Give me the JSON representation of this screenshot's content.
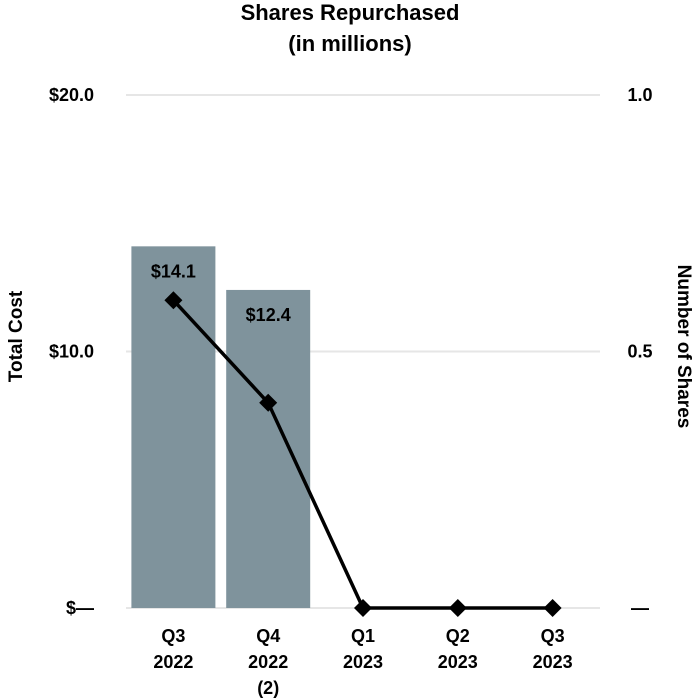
{
  "chart_data": {
    "type": "bar",
    "title": "Shares Repurchased",
    "subtitle": "(in millions)",
    "categories": [
      [
        "Q3",
        "2022"
      ],
      [
        "Q4",
        "2022",
        "(2)"
      ],
      [
        "Q1",
        "2023"
      ],
      [
        "Q2",
        "2023"
      ],
      [
        "Q3",
        "2023"
      ]
    ],
    "series": [
      {
        "name": "Total Cost",
        "kind": "bar",
        "axis": "left",
        "values": [
          14.1,
          12.4,
          0,
          0,
          0
        ],
        "data_labels": [
          "$14.1",
          "$12.4",
          "",
          "",
          ""
        ]
      },
      {
        "name": "Number of Shares",
        "kind": "line",
        "axis": "right",
        "values": [
          0.6,
          0.4,
          0,
          0,
          0
        ]
      }
    ],
    "ylabel": "Total Cost",
    "y2label": "Number of Shares",
    "ylim": [
      0,
      20
    ],
    "y2lim": [
      0,
      1
    ],
    "yticks": [
      {
        "value": 0,
        "label": "$—"
      },
      {
        "value": 10,
        "label": "$10.0"
      },
      {
        "value": 20,
        "label": "$20.0"
      }
    ],
    "y2ticks": [
      {
        "value": 0,
        "label": "—"
      },
      {
        "value": 0.5,
        "label": "0.5"
      },
      {
        "value": 1.0,
        "label": "1.0"
      }
    ],
    "grid": true,
    "colors": {
      "bar": "#7f939c",
      "line": "#000000",
      "grid": "#e6e6e6"
    }
  }
}
